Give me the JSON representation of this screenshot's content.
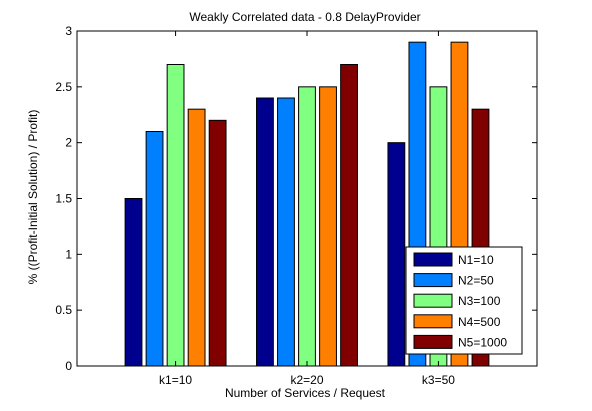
{
  "chart_data": {
    "type": "bar",
    "title": "Weakly Correlated data - 0.8 DelayProvider",
    "xlabel": "Number of Services / Request",
    "ylabel": "% ((Profit-Initial Solution) / Profit)",
    "categories": [
      "k1=10",
      "k2=20",
      "k3=50"
    ],
    "ylim": [
      0,
      3
    ],
    "yticks": [
      0,
      0.5,
      1,
      1.5,
      2,
      2.5,
      3
    ],
    "ytick_labels": [
      "0",
      "0.5",
      "1",
      "1.5",
      "2",
      "2.5",
      "3"
    ],
    "grid": false,
    "legend_position": "bottom-right",
    "series": [
      {
        "name": "N1=10",
        "color": "#00008f",
        "values": [
          1.5,
          2.4,
          2.0
        ]
      },
      {
        "name": "N2=50",
        "color": "#0080ff",
        "values": [
          2.1,
          2.4,
          2.9
        ]
      },
      {
        "name": "N3=100",
        "color": "#80ff80",
        "values": [
          2.7,
          2.5,
          2.5
        ]
      },
      {
        "name": "N4=500",
        "color": "#ff7f00",
        "values": [
          2.3,
          2.5,
          2.9
        ]
      },
      {
        "name": "N5=1000",
        "color": "#800000",
        "values": [
          2.2,
          2.7,
          2.3
        ]
      }
    ]
  }
}
